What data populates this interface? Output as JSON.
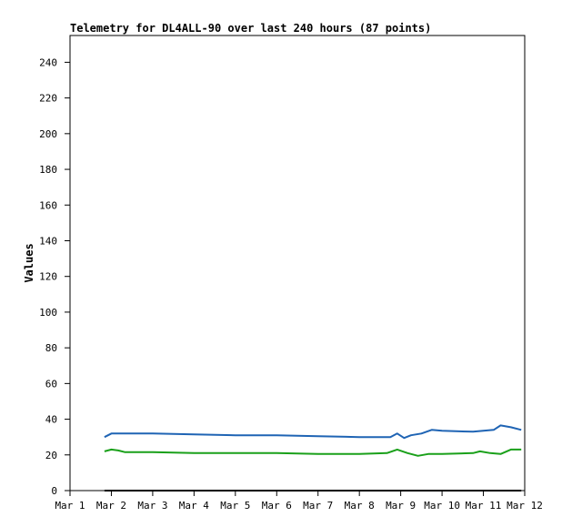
{
  "chart_data": {
    "type": "line",
    "title": "Telemetry for DL4ALL-90 over last 240 hours (87 points)",
    "xlabel": "",
    "ylabel": "Values",
    "xlim": [
      "2024-03-01",
      "2024-03-12"
    ],
    "ylim": [
      0,
      255
    ],
    "yticks": [
      0,
      20,
      40,
      60,
      80,
      100,
      120,
      140,
      160,
      180,
      200,
      220,
      240
    ],
    "xticks": [
      {
        "x": "2024-03-01",
        "label": "Mar 1"
      },
      {
        "x": "2024-03-02",
        "label": "Mar 2"
      },
      {
        "x": "2024-03-03",
        "label": "Mar 3"
      },
      {
        "x": "2024-03-04",
        "label": "Mar 4"
      },
      {
        "x": "2024-03-05",
        "label": "Mar 5"
      },
      {
        "x": "2024-03-06",
        "label": "Mar 6"
      },
      {
        "x": "2024-03-07",
        "label": "Mar 7"
      },
      {
        "x": "2024-03-08",
        "label": "Mar 8"
      },
      {
        "x": "2024-03-09",
        "label": "Mar 9"
      },
      {
        "x": "2024-03-10",
        "label": "Mar 10"
      },
      {
        "x": "2024-03-11",
        "label": "Mar 11"
      },
      {
        "x": "2024-03-12",
        "label": "Mar 12"
      }
    ],
    "grid": false,
    "legend": "none",
    "series": [
      {
        "color": "#1f64b4",
        "points": [
          [
            "2024-03-01 20:00",
            30
          ],
          [
            "2024-03-02 00:00",
            32
          ],
          [
            "2024-03-02 04:00",
            32
          ],
          [
            "2024-03-03 00:00",
            32
          ],
          [
            "2024-03-04 00:00",
            31.5
          ],
          [
            "2024-03-05 00:00",
            31
          ],
          [
            "2024-03-06 00:00",
            31
          ],
          [
            "2024-03-07 00:00",
            30.5
          ],
          [
            "2024-03-08 00:00",
            30
          ],
          [
            "2024-03-08 18:00",
            30
          ],
          [
            "2024-03-08 22:00",
            32
          ],
          [
            "2024-03-09 02:00",
            29.5
          ],
          [
            "2024-03-09 06:00",
            31
          ],
          [
            "2024-03-09 12:00",
            32
          ],
          [
            "2024-03-09 18:00",
            34
          ],
          [
            "2024-03-10 00:00",
            33.5
          ],
          [
            "2024-03-10 18:00",
            33
          ],
          [
            "2024-03-11 00:00",
            33.5
          ],
          [
            "2024-03-11 06:00",
            34
          ],
          [
            "2024-03-11 10:00",
            36.5
          ],
          [
            "2024-03-11 16:00",
            35.5
          ],
          [
            "2024-03-11 22:00",
            34
          ]
        ]
      },
      {
        "color": "#1aa01a",
        "points": [
          [
            "2024-03-01 20:00",
            22
          ],
          [
            "2024-03-02 00:00",
            23
          ],
          [
            "2024-03-02 04:00",
            22.5
          ],
          [
            "2024-03-02 08:00",
            21.5
          ],
          [
            "2024-03-03 00:00",
            21.5
          ],
          [
            "2024-03-04 00:00",
            21
          ],
          [
            "2024-03-05 00:00",
            21
          ],
          [
            "2024-03-06 00:00",
            21
          ],
          [
            "2024-03-07 00:00",
            20.5
          ],
          [
            "2024-03-08 00:00",
            20.5
          ],
          [
            "2024-03-08 16:00",
            21
          ],
          [
            "2024-03-08 22:00",
            23
          ],
          [
            "2024-03-09 04:00",
            21
          ],
          [
            "2024-03-09 10:00",
            19.5
          ],
          [
            "2024-03-09 16:00",
            20.5
          ],
          [
            "2024-03-10 00:00",
            20.5
          ],
          [
            "2024-03-10 18:00",
            21
          ],
          [
            "2024-03-10 22:00",
            22
          ],
          [
            "2024-03-11 04:00",
            21
          ],
          [
            "2024-03-11 10:00",
            20.5
          ],
          [
            "2024-03-11 16:00",
            23
          ],
          [
            "2024-03-11 22:00",
            23
          ]
        ]
      },
      {
        "color": "#000000",
        "points": [
          [
            "2024-03-01 20:00",
            0
          ],
          [
            "2024-03-11 22:00",
            0
          ]
        ]
      }
    ]
  }
}
